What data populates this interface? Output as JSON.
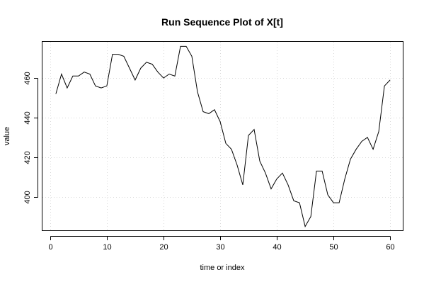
{
  "chart_data": {
    "type": "line",
    "title": "Run Sequence Plot of X[t]",
    "xlabel": "time or index",
    "ylabel": "value",
    "xlim": [
      -1.36,
      62.36
    ],
    "ylim": [
      382.7,
      478.3
    ],
    "x_ticks": [
      0,
      10,
      20,
      30,
      40,
      50,
      60
    ],
    "y_ticks": [
      400,
      420,
      440,
      460
    ],
    "grid": true,
    "line_color": "#000000",
    "series": [
      {
        "x": [
          1,
          2,
          3,
          4,
          5,
          6,
          7,
          8,
          9,
          10,
          11,
          12,
          13,
          14,
          15,
          16,
          17,
          18,
          19,
          20,
          21,
          22,
          23,
          24,
          25,
          26,
          27,
          28,
          29,
          30,
          31,
          32,
          33,
          34,
          35,
          36,
          37,
          38,
          39,
          40,
          41,
          42,
          43,
          44,
          45,
          46,
          47,
          48,
          49,
          50,
          51,
          52,
          53,
          54,
          55,
          56,
          57,
          58,
          59,
          60
        ],
        "values": [
          452,
          462,
          455,
          461,
          461,
          463,
          462,
          456,
          455,
          456,
          472,
          472,
          471,
          465,
          459,
          465,
          468,
          467,
          463,
          460,
          462,
          461,
          476,
          476,
          471,
          453,
          443,
          442,
          444,
          438,
          427,
          424,
          416,
          406,
          431,
          434,
          418,
          412,
          404,
          409,
          412,
          406,
          398,
          397,
          385,
          390,
          413,
          413,
          401,
          397,
          397,
          409,
          419,
          424,
          428,
          430,
          424,
          433,
          456,
          459
        ]
      }
    ]
  }
}
